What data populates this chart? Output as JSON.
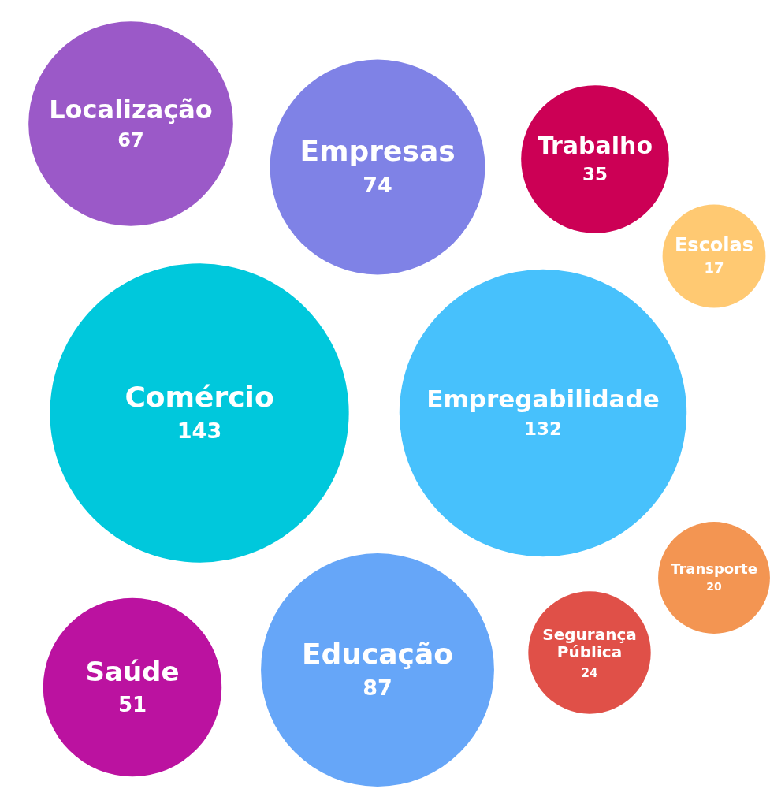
{
  "chart_data": {
    "type": "other",
    "categories": [
      "Localização",
      "Empresas",
      "Trabalho",
      "Escolas",
      "Comércio",
      "Empregabilidade",
      "Transporte",
      "Segurança Pública",
      "Educação",
      "Saúde"
    ],
    "values": [
      67,
      74,
      35,
      17,
      143,
      132,
      20,
      24,
      87,
      51
    ],
    "colors": [
      "#9b59c8",
      "#7f82e6",
      "#cc0055",
      "#ffc972",
      "#00c8dc",
      "#47c1fc",
      "#f39552",
      "#e05048",
      "#66a6f8",
      "#bb12a0"
    ],
    "data_labels": true
  }
}
